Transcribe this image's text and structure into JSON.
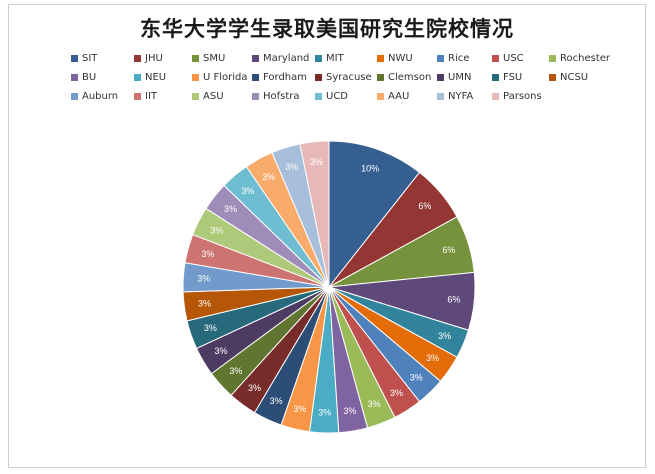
{
  "chart_data": {
    "type": "pie",
    "title": "东华大学学生录取美国研究生院校情况",
    "legend_position": "top",
    "slices": [
      {
        "label": "SIT",
        "value": 10,
        "color": "#365f91"
      },
      {
        "label": "JHU",
        "value": 6,
        "color": "#943634"
      },
      {
        "label": "SMU",
        "value": 6,
        "color": "#76923c"
      },
      {
        "label": "Maryland",
        "value": 6,
        "color": "#5f497a"
      },
      {
        "label": "MIT",
        "value": 3,
        "color": "#31849b"
      },
      {
        "label": "NWU",
        "value": 3,
        "color": "#e36c09"
      },
      {
        "label": "Rice",
        "value": 3,
        "color": "#4f81bd"
      },
      {
        "label": "USC",
        "value": 3,
        "color": "#c0504d"
      },
      {
        "label": "Rochester",
        "value": 3,
        "color": "#9bbb59"
      },
      {
        "label": "BU",
        "value": 3,
        "color": "#8064a2"
      },
      {
        "label": "NEU",
        "value": 3,
        "color": "#4bacc6"
      },
      {
        "label": "U Florida",
        "value": 3,
        "color": "#f79646"
      },
      {
        "label": "Fordham",
        "value": 3,
        "color": "#2c4d75"
      },
      {
        "label": "Syracuse",
        "value": 3,
        "color": "#772c2a"
      },
      {
        "label": "Clemson",
        "value": 3,
        "color": "#5f7530"
      },
      {
        "label": "UMN",
        "value": 3,
        "color": "#4d3b62"
      },
      {
        "label": "FSU",
        "value": 3,
        "color": "#276a7c"
      },
      {
        "label": "NCSU",
        "value": 3,
        "color": "#b65708"
      },
      {
        "label": "Auburn",
        "value": 3,
        "color": "#729aca"
      },
      {
        "label": "IIT",
        "value": 3,
        "color": "#cd7371"
      },
      {
        "label": "ASU",
        "value": 3,
        "color": "#afc97a"
      },
      {
        "label": "Hofstra",
        "value": 3,
        "color": "#a08cb8"
      },
      {
        "label": "UCD",
        "value": 3,
        "color": "#6fbdd1"
      },
      {
        "label": "AAU",
        "value": 3,
        "color": "#f9ab6b"
      },
      {
        "label": "NYFA",
        "value": 3,
        "color": "#a8bfdb"
      },
      {
        "label": "Parsons",
        "value": 3,
        "color": "#e6b9b8"
      }
    ],
    "data_labels": [
      "10%",
      "6%",
      "6%",
      "6%",
      "3%",
      "3%",
      "3%",
      "3%",
      "3%",
      "3%",
      "3%",
      "3%",
      "3%",
      "3%",
      "3%",
      "3%",
      "3%",
      "3%",
      "3%",
      "3%",
      "3%",
      "3%",
      "3%",
      "3%",
      "3%",
      "3%"
    ]
  }
}
